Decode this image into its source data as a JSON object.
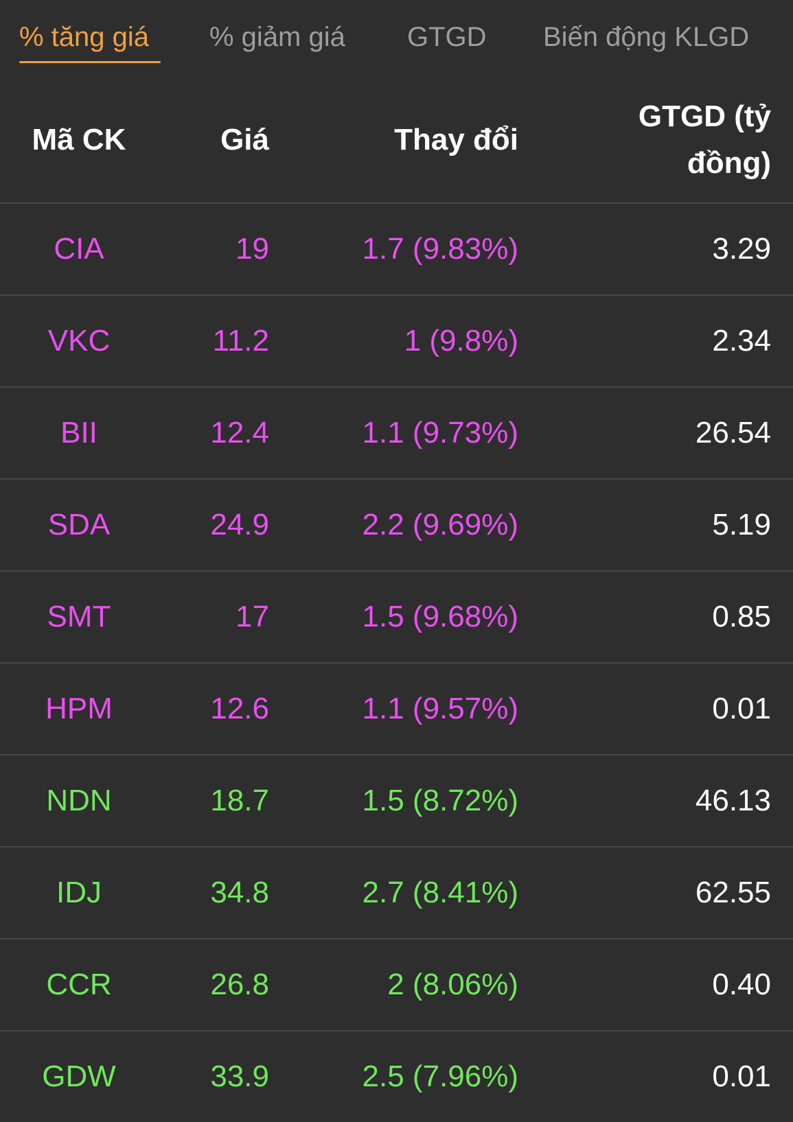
{
  "tabs": [
    {
      "label": "% tăng giá",
      "active": true
    },
    {
      "label": "% giảm giá",
      "active": false
    },
    {
      "label": "GTGD",
      "active": false
    },
    {
      "label": "Biến động KLGD",
      "active": false
    }
  ],
  "table": {
    "headers": {
      "code": "Mã CK",
      "price": "Giá",
      "change": "Thay đổi",
      "value": "GTGD (tỷ đồng)"
    },
    "rows": [
      {
        "code": "CIA",
        "price": "19",
        "change": "1.7 (9.83%)",
        "value": "3.29",
        "status": "ceiling"
      },
      {
        "code": "VKC",
        "price": "11.2",
        "change": "1 (9.8%)",
        "value": "2.34",
        "status": "ceiling"
      },
      {
        "code": "BII",
        "price": "12.4",
        "change": "1.1 (9.73%)",
        "value": "26.54",
        "status": "ceiling"
      },
      {
        "code": "SDA",
        "price": "24.9",
        "change": "2.2 (9.69%)",
        "value": "5.19",
        "status": "ceiling"
      },
      {
        "code": "SMT",
        "price": "17",
        "change": "1.5 (9.68%)",
        "value": "0.85",
        "status": "ceiling"
      },
      {
        "code": "HPM",
        "price": "12.6",
        "change": "1.1 (9.57%)",
        "value": "0.01",
        "status": "ceiling"
      },
      {
        "code": "NDN",
        "price": "18.7",
        "change": "1.5 (8.72%)",
        "value": "46.13",
        "status": "up"
      },
      {
        "code": "IDJ",
        "price": "34.8",
        "change": "2.7 (8.41%)",
        "value": "62.55",
        "status": "up"
      },
      {
        "code": "CCR",
        "price": "26.8",
        "change": "2 (8.06%)",
        "value": "0.40",
        "status": "up"
      },
      {
        "code": "GDW",
        "price": "33.9",
        "change": "2.5 (7.96%)",
        "value": "0.01",
        "status": "up"
      }
    ]
  },
  "colors": {
    "background": "#2e2e2e",
    "active_tab": "#f0a040",
    "inactive_tab": "#9d9d9d",
    "ceiling": "#e94ff0",
    "up": "#6fe85a",
    "value_text": "#ffffff",
    "divider": "#474747"
  }
}
